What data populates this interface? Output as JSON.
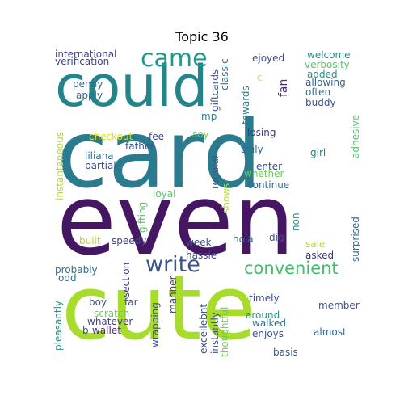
{
  "title": "Topic 36",
  "words": {
    "card": "card",
    "even": "even",
    "cute": "cute",
    "could": "could",
    "came": "came",
    "write": "write",
    "convenient": "convenient",
    "international": "international",
    "verification": "verification",
    "penny": "penny",
    "apply": "apply",
    "instantaneous": "instantaneous",
    "checkout": "checkout",
    "fee": "fee",
    "father": "father",
    "liliana": "liliana",
    "partial": "partial",
    "soy": "soy",
    "mp": "mp",
    "giftcards": "giftcards",
    "classic": "classic",
    "towards": "towards",
    "ejoyed": "ejoyed",
    "fan": "fan",
    "c": "c",
    "welcome": "welcome",
    "verbosity": "verbosity",
    "added": "added",
    "allowing": "allowing",
    "often": "often",
    "buddy": "buddy",
    "adhesive": "adhesive",
    "losing": "losing",
    "truly": "truly",
    "girl": "girl",
    "enter": "enter",
    "whether": "whether",
    "continue": "continue",
    "regular": "regular",
    "shows": "shows",
    "loyal": "loyal",
    "gifting": "gifting",
    "built": "built",
    "speedy": "speedy",
    "week": "week",
    "hola": "hola",
    "dig": "dig",
    "non": "non",
    "surprised": "surprised",
    "sale": "sale",
    "asked": "asked",
    "hassle": "hassle",
    "section": "section",
    "probably": "probably",
    "odd": "odd",
    "boy": "boy",
    "far": "far",
    "scratch": "scratch",
    "whatever": "whatever",
    "b": "b",
    "wallet": "wallet",
    "manner": "manner",
    "wrapping": "wrapping",
    "excellent": "excellebnt",
    "instantly": "instantly",
    "thoughtful": "thoughtful",
    "timely": "timely",
    "around": "around",
    "walked": "walked",
    "enjoys": "enjoys",
    "member": "member",
    "almost": "almost",
    "basis": "basis",
    "pleasantly": "pleasantly"
  }
}
